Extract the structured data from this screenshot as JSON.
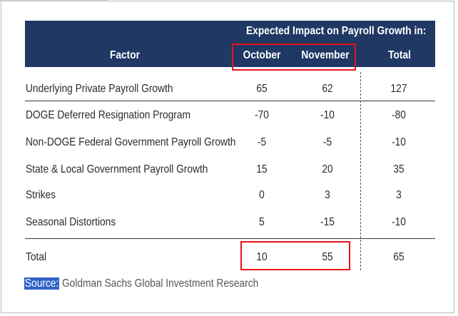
{
  "table": {
    "header_group": "Expected Impact on Payroll Growth in:",
    "columns": [
      "Factor",
      "October",
      "November",
      "Total"
    ],
    "rows": [
      {
        "factor": "Underlying Private Payroll Growth",
        "october": "65",
        "november": "62",
        "total": "127"
      },
      {
        "factor": "DOGE Deferred Resignation Program",
        "october": "-70",
        "november": "-10",
        "total": "-80"
      },
      {
        "factor": "Non-DOGE Federal Government Payroll Growth",
        "october": "-5",
        "november": "-5",
        "total": "-10"
      },
      {
        "factor": "State & Local Government Payroll Growth",
        "october": "15",
        "november": "20",
        "total": "35"
      },
      {
        "factor": "Strikes",
        "october": "0",
        "november": "3",
        "total": "3"
      },
      {
        "factor": "Seasonal Distortions",
        "october": "5",
        "november": "-15",
        "total": "-10"
      }
    ],
    "total_row": {
      "factor": "Total",
      "october": "10",
      "november": "55",
      "total": "65"
    }
  },
  "source": {
    "label": "Source:",
    "text": " Goldman Sachs Global Investment Research"
  },
  "colors": {
    "header_bg": "#1f3864",
    "highlight": "#e8131c",
    "source_label_bg": "#2f62c8"
  },
  "chart_data": {
    "type": "table",
    "title": "Expected Impact on Payroll Growth in:",
    "columns": [
      "Factor",
      "October",
      "November",
      "Total"
    ],
    "rows": [
      [
        "Underlying Private Payroll Growth",
        65,
        62,
        127
      ],
      [
        "DOGE Deferred Resignation Program",
        -70,
        -10,
        -80
      ],
      [
        "Non-DOGE Federal Government Payroll Growth",
        -5,
        -5,
        -10
      ],
      [
        "State & Local Government Payroll Growth",
        15,
        20,
        35
      ],
      [
        "Strikes",
        0,
        3,
        3
      ],
      [
        "Seasonal Distortions",
        5,
        -15,
        -10
      ],
      [
        "Total",
        10,
        55,
        65
      ]
    ]
  }
}
